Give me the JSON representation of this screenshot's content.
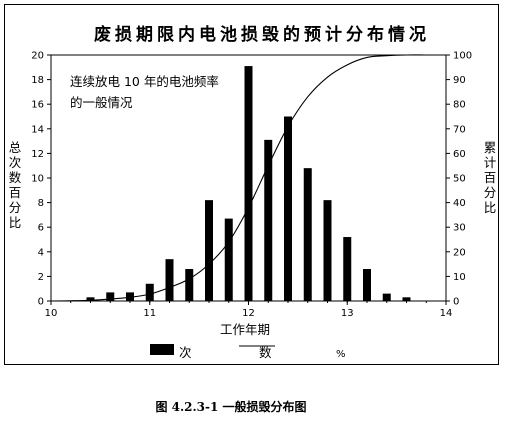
{
  "chart_data": {
    "type": "bar",
    "title": "废损期限内电池损毁的预计分布情况",
    "annotation": [
      "连续放电 10 年的电池频率",
      "的一般情况"
    ],
    "xlabel": "工作年期",
    "ylabel_left": "总次数百分比",
    "ylabel_right": "累计百分比",
    "xlim": [
      10,
      14
    ],
    "ylim_left": [
      0,
      20
    ],
    "ylim_right": [
      0,
      100
    ],
    "x_ticks": [
      "10",
      "11",
      "12",
      "13",
      "14"
    ],
    "y_left_ticks": [
      "0",
      "2",
      "4",
      "6",
      "8",
      "10",
      "12",
      "14",
      "16",
      "18",
      "20"
    ],
    "y_right_ticks": [
      "0",
      "10",
      "20",
      "30",
      "40",
      "50",
      "60",
      "70",
      "80",
      "90",
      "100"
    ],
    "bars": {
      "x": [
        10.4,
        10.6,
        10.8,
        11.0,
        11.2,
        11.4,
        11.6,
        11.8,
        12.0,
        12.2,
        12.4,
        12.6,
        12.8,
        13.0,
        13.2,
        13.4,
        13.6
      ],
      "values": [
        0.3,
        0.7,
        0.7,
        1.4,
        3.4,
        2.6,
        8.2,
        6.7,
        19.1,
        13.1,
        15.0,
        10.8,
        8.2,
        5.2,
        2.6,
        0.6,
        0.3
      ]
    },
    "cumulative": {
      "x": [
        10.0,
        10.2,
        10.4,
        10.6,
        10.8,
        11.0,
        11.2,
        11.4,
        11.6,
        11.8,
        12.0,
        12.2,
        12.4,
        12.6,
        12.8,
        13.0,
        13.2,
        13.4,
        13.6,
        13.8,
        14.0
      ],
      "values": [
        0,
        0.1,
        0.3,
        0.8,
        1.5,
        2.8,
        5.5,
        9.0,
        15.0,
        24.0,
        38.0,
        55.0,
        71.0,
        83.0,
        91.0,
        96.0,
        99.0,
        99.7,
        100,
        100,
        100
      ]
    },
    "legend": [
      {
        "label": "次",
        "marker": "bar"
      },
      {
        "label": "数",
        "marker": "line"
      },
      {
        "label": "%",
        "marker": "none"
      }
    ]
  },
  "caption": "图 4.2.3-1  一般损毁分布图"
}
